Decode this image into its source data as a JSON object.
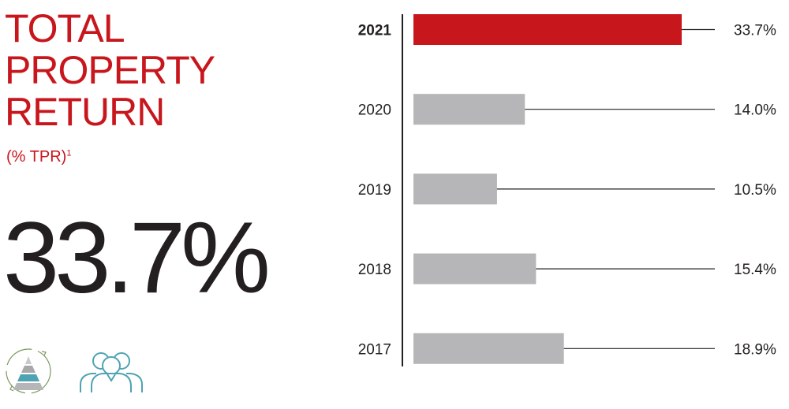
{
  "heading": {
    "title_lines": [
      "TOTAL",
      "PROPERTY",
      "RETURN"
    ],
    "subtitle": "(% TPR)",
    "footnote_mark": "1",
    "headline_value": "33.7%"
  },
  "colors": {
    "accent": "#c8161d",
    "bar_default": "#b6b6b8",
    "text_dark": "#231f20",
    "icon_teal": "#4ea3b3"
  },
  "icons": [
    "pyramid-cycle-icon",
    "people-group-icon"
  ],
  "chart_data": {
    "type": "bar",
    "orientation": "horizontal",
    "categories": [
      "2021",
      "2020",
      "2019",
      "2018",
      "2017"
    ],
    "values": [
      33.7,
      14.0,
      10.5,
      15.4,
      18.9
    ],
    "value_labels": [
      "33.7%",
      "14.0%",
      "10.5%",
      "15.4%",
      "18.9%"
    ],
    "highlight_category": "2021",
    "unit": "%",
    "title": "",
    "xlabel": "",
    "ylabel": "",
    "xlim": [
      0,
      35
    ],
    "grid": false,
    "legend": "none"
  }
}
